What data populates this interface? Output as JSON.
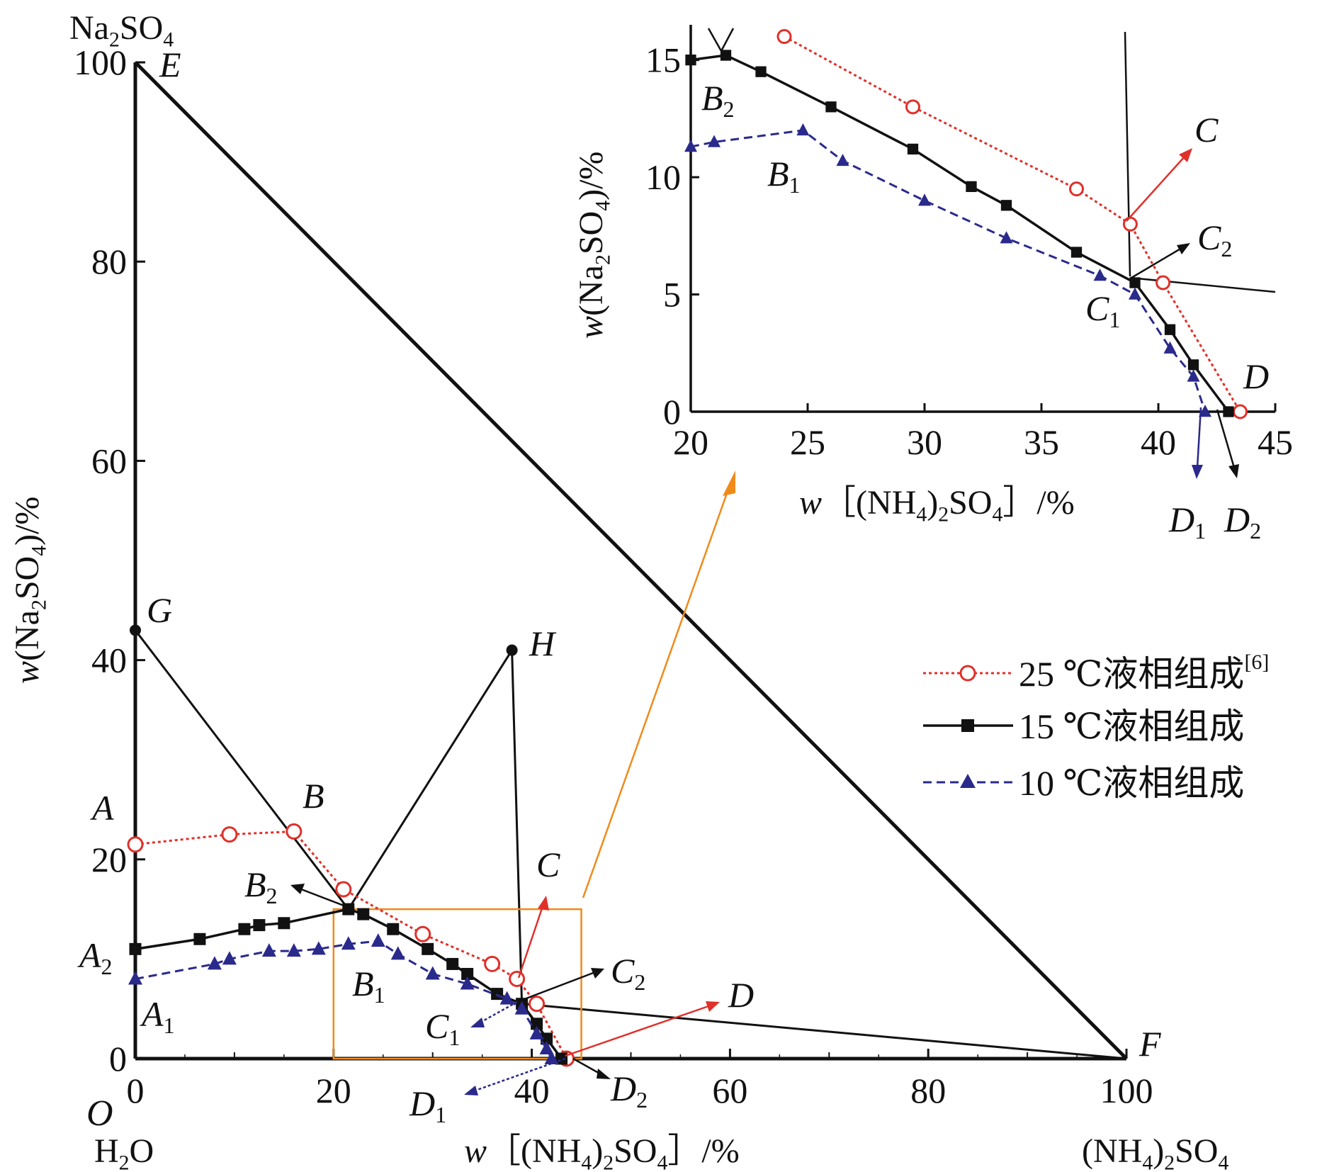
{
  "chart_data": [
    {
      "type": "line",
      "subtype": "ternary-phase-diagram",
      "xlabel": "w［(NH4)2SO4］/%",
      "ylabel": "w(Na2SO4)/%",
      "xlim": [
        0,
        100
      ],
      "ylim": [
        0,
        100
      ],
      "x_ticks": [
        0,
        20,
        40,
        60,
        80,
        100
      ],
      "y_ticks": [
        0,
        20,
        40,
        60,
        80,
        100
      ],
      "vertex_labels": {
        "top": "Na2SO4",
        "origin": "H2O",
        "right": "(NH4)2SO4",
        "origin_letter": "O"
      },
      "legend": {
        "placement": "right",
        "entries": [
          {
            "label": "25 ℃液相组成",
            "ref": "[6]"
          },
          {
            "label": "15 ℃液相组成",
            "ref": ""
          },
          {
            "label": "10 ℃液相组成",
            "ref": ""
          }
        ]
      },
      "series": [
        {
          "name": "25 ℃液相组成",
          "color": "#e0302a",
          "marker": "open-circle",
          "dash": "dotted",
          "x": [
            0,
            9.5,
            16,
            21,
            29,
            36,
            38.5,
            40.5,
            43.5
          ],
          "y": [
            21.5,
            22.5,
            22.8,
            17,
            12.5,
            9.5,
            8,
            5.5,
            0
          ]
        },
        {
          "name": "15 ℃液相组成",
          "color": "#111111",
          "marker": "filled-square",
          "dash": "solid",
          "x": [
            0,
            6.5,
            11,
            12.5,
            15,
            21.5,
            23,
            26,
            29.5,
            32,
            33.5,
            36.5,
            39,
            40.5,
            41.5,
            43
          ],
          "y": [
            11,
            12,
            13,
            13.4,
            13.6,
            15,
            14.5,
            13,
            11,
            9.5,
            8.5,
            6.5,
            5.5,
            3.5,
            2,
            0
          ]
        },
        {
          "name": "10 ℃液相组成",
          "color": "#2a2a8c",
          "marker": "filled-triangle",
          "dash": "dashed",
          "x": [
            0,
            8,
            9.5,
            13.5,
            16,
            18.5,
            21.5,
            24.5,
            26.5,
            30,
            33.5,
            37.5,
            39,
            40.5,
            41.5,
            42
          ],
          "y": [
            8,
            9.5,
            10,
            10.8,
            10.8,
            11,
            11.5,
            11.8,
            10.5,
            8.5,
            7.5,
            6,
            5,
            2.5,
            1,
            0
          ]
        }
      ],
      "construction_lines": [
        {
          "from": [
            0,
            100
          ],
          "to": [
            100,
            0
          ]
        },
        {
          "from": [
            0,
            43
          ],
          "to": [
            21.5,
            15
          ]
        },
        {
          "from": [
            21.5,
            15
          ],
          "to": [
            38,
            41
          ]
        },
        {
          "from": [
            38,
            41
          ],
          "to": [
            39,
            5.5
          ]
        },
        {
          "from": [
            39,
            5.5
          ],
          "to": [
            100,
            0
          ]
        },
        {
          "from": [
            39,
            5.5
          ],
          "to": [
            43,
            0
          ]
        }
      ],
      "point_labels": [
        {
          "text": "E",
          "x": 0,
          "y": 100
        },
        {
          "text": "G",
          "x": 0,
          "y": 43
        },
        {
          "text": "H",
          "x": 38,
          "y": 41
        },
        {
          "text": "A",
          "x": 0,
          "y": 21.5
        },
        {
          "text": "B",
          "x": 16,
          "y": 22.8
        },
        {
          "text": "B",
          "sub": "2",
          "x": 21.5,
          "y": 15
        },
        {
          "text": "A",
          "sub": "2",
          "x": 0,
          "y": 11
        },
        {
          "text": "B",
          "sub": "1",
          "x": 24.5,
          "y": 11.8
        },
        {
          "text": "A",
          "sub": "1",
          "x": 0,
          "y": 8
        },
        {
          "text": "C",
          "x": 38.5,
          "y": 8
        },
        {
          "text": "C",
          "sub": "2",
          "x": 39,
          "y": 5.5
        },
        {
          "text": "C",
          "sub": "1",
          "x": 39,
          "y": 5
        },
        {
          "text": "D",
          "x": 43.5,
          "y": 0
        },
        {
          "text": "D",
          "sub": "2",
          "x": 43,
          "y": 0
        },
        {
          "text": "D",
          "sub": "1",
          "x": 42,
          "y": 0
        },
        {
          "text": "F",
          "x": 100,
          "y": 0
        }
      ],
      "zoom_box": {
        "x": [
          20,
          45
        ],
        "y": [
          0,
          15
        ]
      }
    },
    {
      "type": "line",
      "subtype": "inset",
      "xlabel": "w［(NH4)2SO4］/%",
      "ylabel": "w(Na2SO4)/%",
      "xlim": [
        20,
        45
      ],
      "ylim": [
        0,
        16.5
      ],
      "x_ticks": [
        20,
        25,
        30,
        35,
        40,
        45
      ],
      "y_ticks": [
        0,
        5,
        10,
        15
      ],
      "series": [
        {
          "name": "25 ℃液相组成",
          "color": "#e0302a",
          "marker": "open-circle",
          "dash": "dotted",
          "x": [
            24,
            29.5,
            36.5,
            38.8,
            40.2,
            43.5
          ],
          "y": [
            16,
            13,
            9.5,
            8,
            5.5,
            0
          ]
        },
        {
          "name": "15 ℃液相组成",
          "color": "#111111",
          "marker": "filled-square",
          "dash": "solid",
          "x": [
            20,
            21.5,
            23,
            26,
            29.5,
            32,
            33.5,
            36.5,
            39,
            40.5,
            41.5,
            43
          ],
          "y": [
            15,
            15.2,
            14.5,
            13,
            11.2,
            9.6,
            8.8,
            6.8,
            5.5,
            3.5,
            2,
            0
          ]
        },
        {
          "name": "10 ℃液相组成",
          "color": "#2a2a8c",
          "marker": "filled-triangle",
          "dash": "dashed",
          "x": [
            20,
            21,
            24.8,
            26.5,
            30,
            33.5,
            37.5,
            39,
            40.5,
            41.5,
            42
          ],
          "y": [
            11.3,
            11.5,
            12,
            10.7,
            9,
            7.4,
            5.8,
            5,
            2.7,
            1.5,
            0
          ]
        }
      ],
      "point_labels": [
        {
          "text": "B",
          "sub": "2"
        },
        {
          "text": "B",
          "sub": "1"
        },
        {
          "text": "C"
        },
        {
          "text": "C",
          "sub": "2"
        },
        {
          "text": "C",
          "sub": "1"
        },
        {
          "text": "D"
        },
        {
          "text": "D",
          "sub": "1"
        },
        {
          "text": "D",
          "sub": "2"
        }
      ]
    }
  ]
}
